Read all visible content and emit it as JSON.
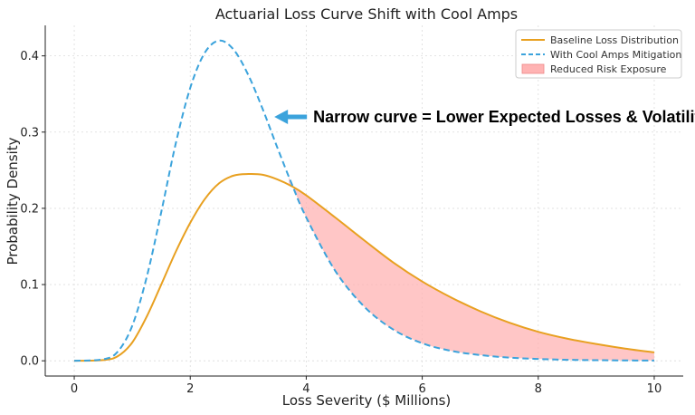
{
  "chart_data": {
    "type": "line",
    "title": "Actuarial Loss Curve Shift with Cool Amps",
    "xlabel": "Loss Severity ($ Millions)",
    "ylabel": "Probability Density",
    "xlim": [
      -0.5,
      10.5
    ],
    "ylim": [
      -0.02,
      0.44
    ],
    "xticks": [
      0,
      2,
      4,
      6,
      8,
      10
    ],
    "yticks": [
      0.0,
      0.1,
      0.2,
      0.3,
      0.4
    ],
    "xtick_labels": [
      "0",
      "2",
      "4",
      "6",
      "8",
      "10"
    ],
    "ytick_labels": [
      "0.0",
      "0.1",
      "0.2",
      "0.3",
      "0.4"
    ],
    "grid": true,
    "legend_position": "top-right",
    "series": [
      {
        "name": "Baseline Loss Distribution",
        "color": "#E8A020",
        "style": "solid",
        "x": [
          0,
          0.5,
          0.75,
          1.0,
          1.25,
          1.5,
          1.75,
          2.0,
          2.25,
          2.5,
          2.75,
          3.0,
          3.25,
          3.5,
          3.75,
          4.0,
          4.5,
          5.0,
          5.5,
          6.0,
          6.5,
          7.0,
          7.5,
          8.0,
          8.5,
          9.0,
          9.5,
          10.0
        ],
        "y": [
          0,
          0.001,
          0.006,
          0.024,
          0.058,
          0.1,
          0.143,
          0.181,
          0.212,
          0.233,
          0.243,
          0.245,
          0.244,
          0.238,
          0.229,
          0.217,
          0.188,
          0.158,
          0.129,
          0.104,
          0.083,
          0.065,
          0.05,
          0.038,
          0.029,
          0.022,
          0.016,
          0.011
        ]
      },
      {
        "name": "With Cool Amps Mitigation",
        "color": "#3BA3DC",
        "style": "dashed",
        "x": [
          0,
          0.5,
          0.75,
          1.0,
          1.25,
          1.5,
          1.75,
          2.0,
          2.25,
          2.5,
          2.75,
          3.0,
          3.25,
          3.5,
          3.75,
          4.0,
          4.5,
          5.0,
          5.5,
          6.0,
          6.5,
          7.0,
          7.5,
          8.0,
          8.5,
          9.0,
          9.5,
          10.0
        ],
        "y": [
          0,
          0.002,
          0.012,
          0.046,
          0.11,
          0.195,
          0.285,
          0.358,
          0.404,
          0.42,
          0.408,
          0.375,
          0.33,
          0.28,
          0.232,
          0.188,
          0.118,
          0.071,
          0.041,
          0.023,
          0.013,
          0.0075,
          0.0042,
          0.0024,
          0.0013,
          0.0008,
          0.0005,
          0.0003
        ]
      }
    ],
    "fill_between": {
      "name": "Reduced Risk Exposure",
      "color": "#FFB3B3",
      "x_from": 3.7
    },
    "annotation": {
      "text": "Narrow curve = Lower Expected Losses & Volatility",
      "arrow_x": 3.45,
      "arrow_y": 0.32,
      "color": "#3BA3DC"
    }
  }
}
